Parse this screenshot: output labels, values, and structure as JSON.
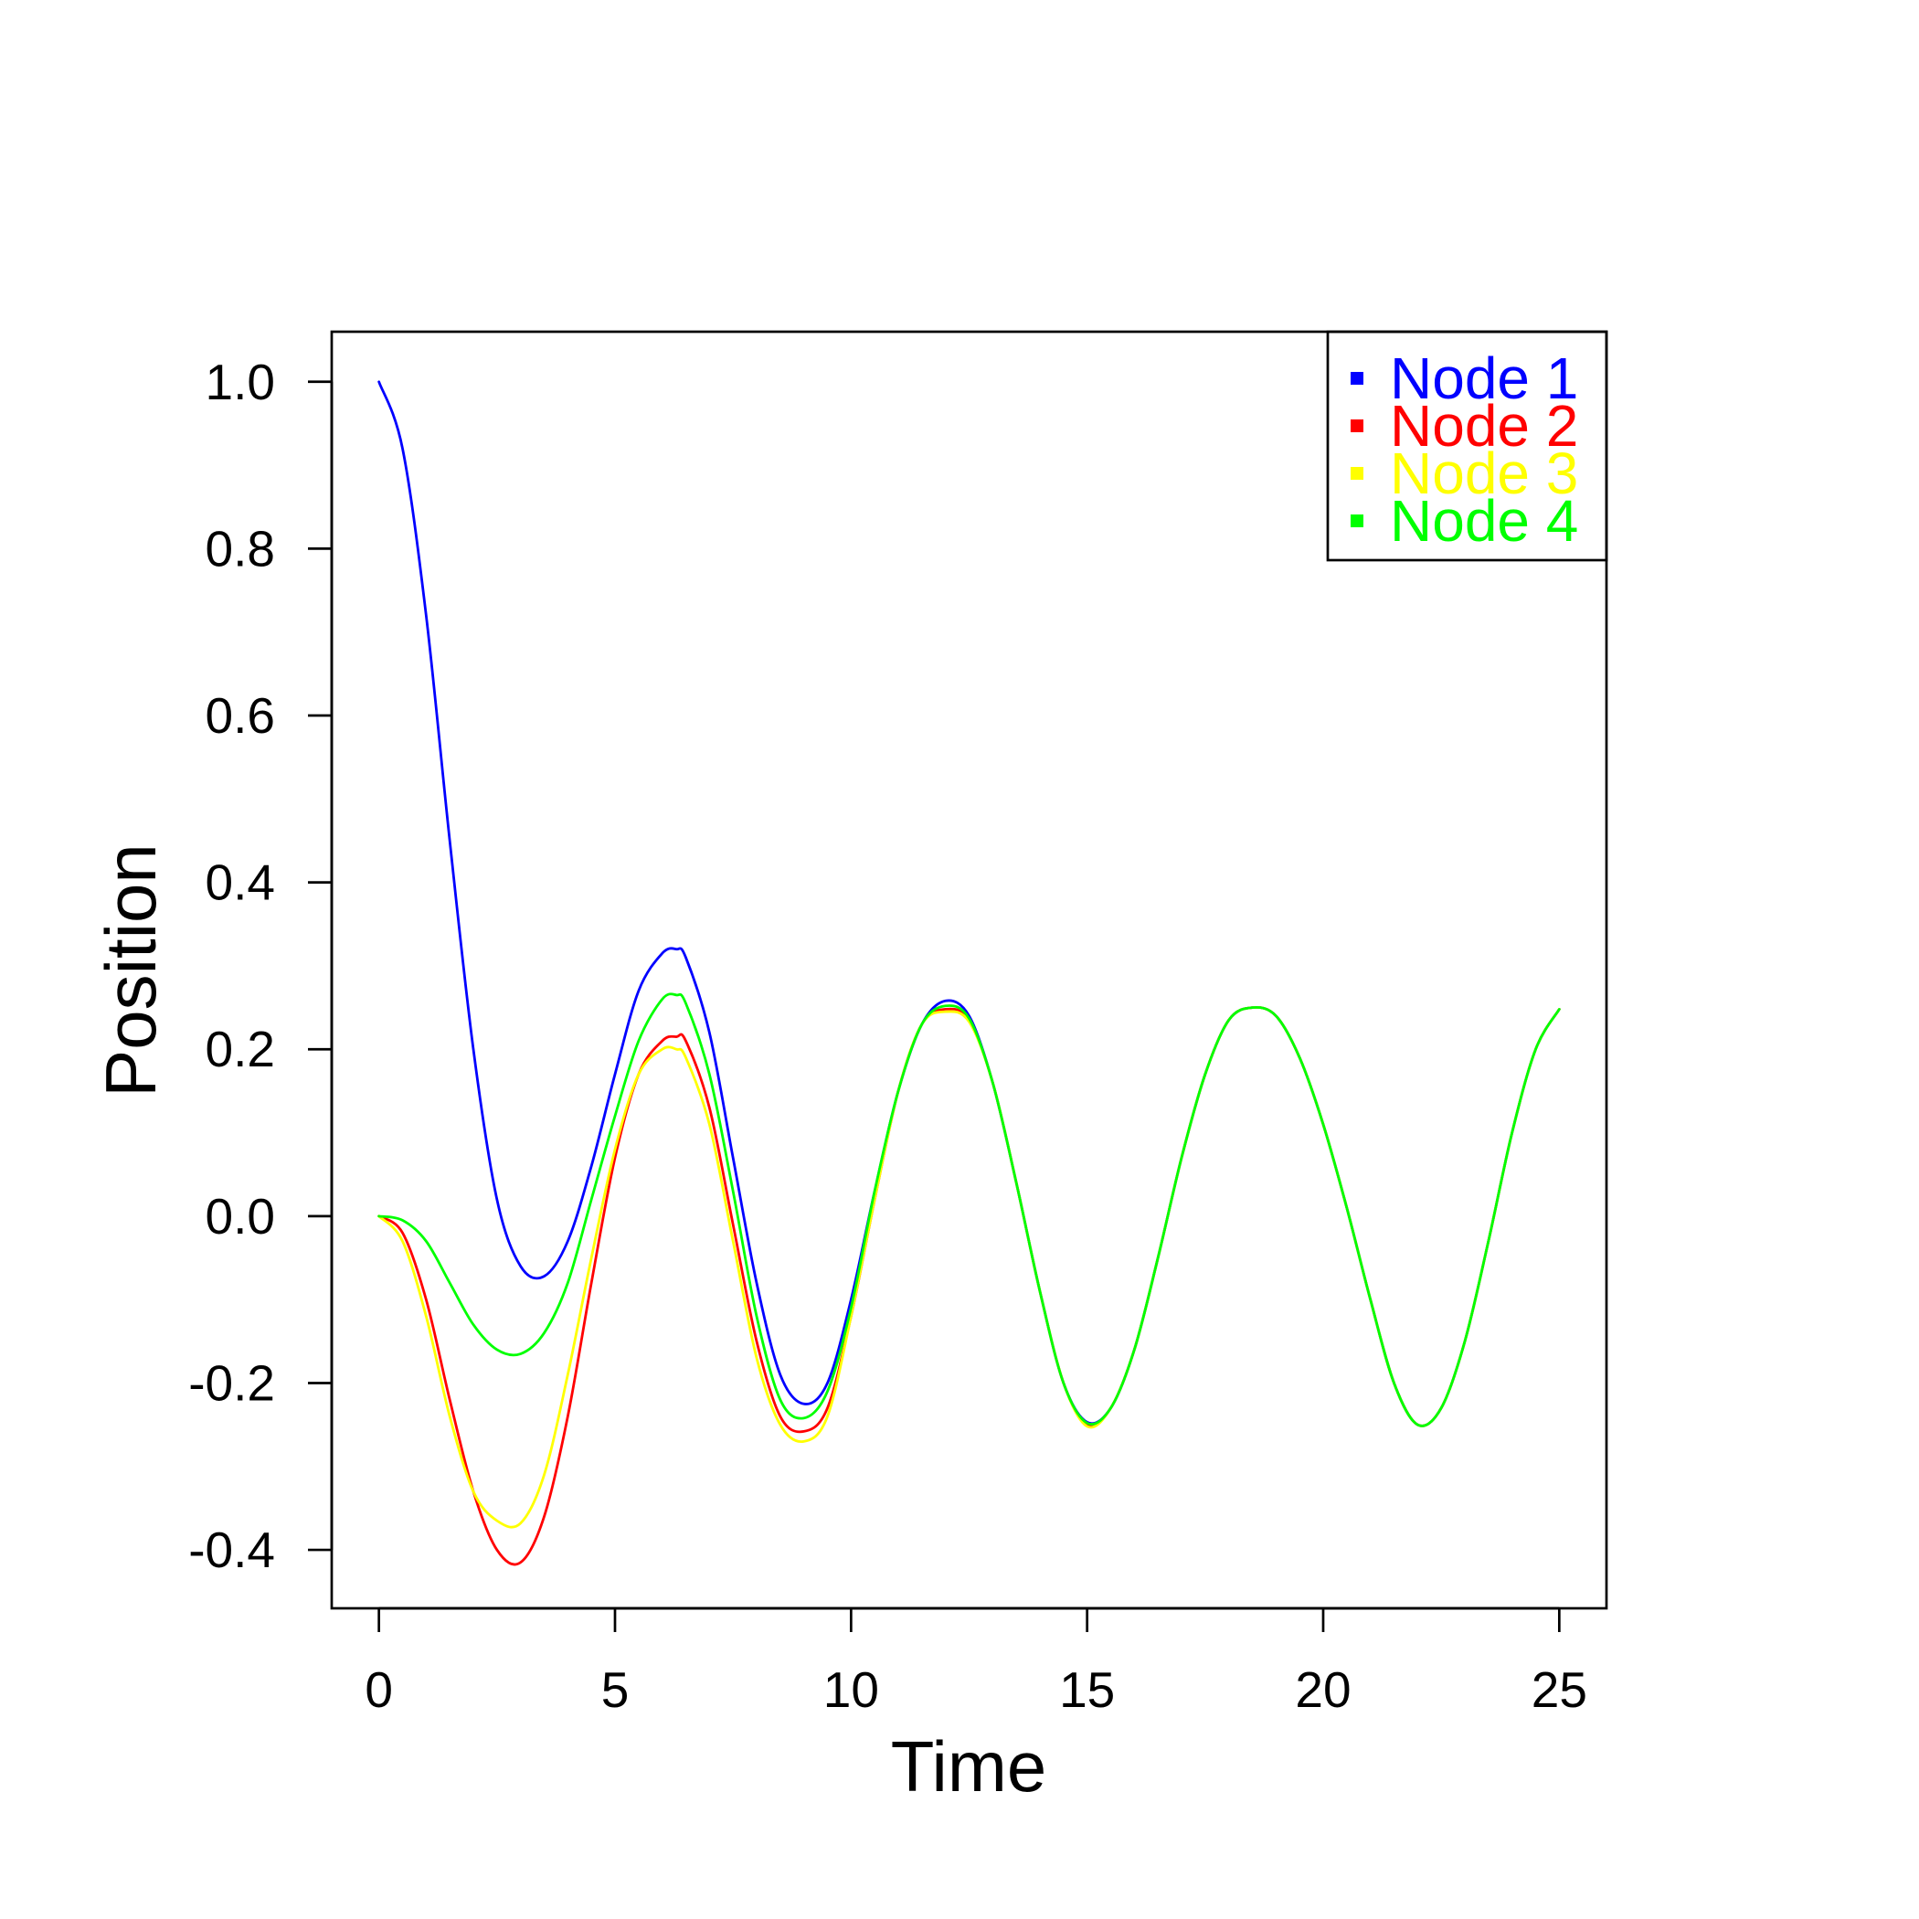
{
  "chart_data": {
    "type": "line",
    "title": "",
    "xlabel": "Time",
    "ylabel": "Position",
    "xlim": [
      -1,
      26
    ],
    "ylim": [
      -0.47,
      1.06
    ],
    "x_ticks": [
      0,
      5,
      10,
      15,
      20,
      25
    ],
    "x_tick_labels": [
      "0",
      "5",
      "10",
      "15",
      "20",
      "25"
    ],
    "y_ticks": [
      -0.4,
      -0.2,
      0.0,
      0.2,
      0.4,
      0.6,
      0.8,
      1.0
    ],
    "y_tick_labels": [
      "-0.4",
      "-0.2",
      "0.0",
      "0.2",
      "0.4",
      "0.6",
      "0.8",
      "1.0"
    ],
    "grid": false,
    "legend_position": "top-right",
    "series": [
      {
        "name": "Node 1",
        "color": "#0000ff",
        "x": [
          0,
          0.5,
          1,
          1.5,
          2,
          2.5,
          3,
          3.5,
          4,
          4.5,
          5,
          5.5,
          6,
          6.3,
          6.5,
          7,
          7.5,
          8,
          8.5,
          9,
          9.5,
          10,
          10.5,
          11,
          11.5,
          12,
          12.5,
          13,
          13.5,
          14,
          14.5,
          15,
          15.5,
          16,
          16.5,
          17,
          17.5,
          18,
          18.5,
          19,
          19.5,
          20,
          20.5,
          21,
          21.5,
          22,
          22.5,
          23,
          23.5,
          24,
          24.5,
          25
        ],
        "values": [
          1.0,
          0.92,
          0.72,
          0.45,
          0.2,
          0.02,
          -0.06,
          -0.072,
          -0.03,
          0.06,
          0.17,
          0.27,
          0.315,
          0.32,
          0.31,
          0.22,
          0.07,
          -0.08,
          -0.19,
          -0.225,
          -0.2,
          -0.1,
          0.03,
          0.15,
          0.23,
          0.258,
          0.24,
          0.16,
          0.04,
          -0.09,
          -0.2,
          -0.247,
          -0.23,
          -0.16,
          -0.05,
          0.07,
          0.17,
          0.235,
          0.25,
          0.24,
          0.19,
          0.11,
          0.01,
          -0.1,
          -0.2,
          -0.25,
          -0.23,
          -0.15,
          -0.03,
          0.1,
          0.2,
          0.248
        ]
      },
      {
        "name": "Node 2",
        "color": "#ff0000",
        "x": [
          0,
          0.5,
          1,
          1.5,
          2,
          2.5,
          3,
          3.5,
          4,
          4.5,
          5,
          5.5,
          6,
          6.3,
          6.5,
          7,
          7.5,
          8,
          8.5,
          9,
          9.5,
          10,
          10.5,
          11,
          11.5,
          12,
          12.5,
          13,
          13.5,
          14,
          14.5,
          15,
          15.5,
          16,
          16.5,
          17,
          17.5,
          18,
          18.5,
          19,
          19.5,
          20,
          20.5,
          21,
          21.5,
          22,
          22.5,
          23,
          23.5,
          24,
          24.5,
          25
        ],
        "values": [
          0.0,
          -0.02,
          -0.1,
          -0.22,
          -0.33,
          -0.4,
          -0.415,
          -0.36,
          -0.24,
          -0.08,
          0.07,
          0.17,
          0.21,
          0.215,
          0.21,
          0.13,
          -0.01,
          -0.15,
          -0.24,
          -0.258,
          -0.23,
          -0.12,
          0.02,
          0.15,
          0.23,
          0.248,
          0.235,
          0.16,
          0.04,
          -0.09,
          -0.2,
          -0.25,
          -0.23,
          -0.16,
          -0.05,
          0.07,
          0.17,
          0.235,
          0.25,
          0.24,
          0.19,
          0.11,
          0.01,
          -0.1,
          -0.2,
          -0.25,
          -0.23,
          -0.15,
          -0.03,
          0.1,
          0.2,
          0.248
        ]
      },
      {
        "name": "Node 3",
        "color": "#ffff00",
        "x": [
          0,
          0.5,
          1,
          1.5,
          2,
          2.5,
          3,
          3.5,
          4,
          4.5,
          5,
          5.5,
          6,
          6.3,
          6.5,
          7,
          7.5,
          8,
          8.5,
          9,
          9.5,
          10,
          10.5,
          11,
          11.5,
          12,
          12.5,
          13,
          13.5,
          14,
          14.5,
          15,
          15.5,
          16,
          16.5,
          17,
          17.5,
          18,
          18.5,
          19,
          19.5,
          20,
          20.5,
          21,
          21.5,
          22,
          22.5,
          23,
          23.5,
          24,
          24.5,
          25
        ],
        "values": [
          0.0,
          -0.03,
          -0.12,
          -0.24,
          -0.33,
          -0.365,
          -0.368,
          -0.31,
          -0.19,
          -0.05,
          0.08,
          0.17,
          0.2,
          0.2,
          0.19,
          0.11,
          -0.03,
          -0.17,
          -0.25,
          -0.27,
          -0.24,
          -0.12,
          0.02,
          0.15,
          0.23,
          0.245,
          0.233,
          0.16,
          0.04,
          -0.09,
          -0.2,
          -0.252,
          -0.23,
          -0.16,
          -0.05,
          0.07,
          0.17,
          0.235,
          0.25,
          0.24,
          0.19,
          0.11,
          0.01,
          -0.1,
          -0.2,
          -0.25,
          -0.23,
          -0.15,
          -0.03,
          0.1,
          0.2,
          0.248
        ]
      },
      {
        "name": "Node 4",
        "color": "#00ff00",
        "x": [
          0,
          0.5,
          1,
          1.5,
          2,
          2.5,
          3,
          3.5,
          4,
          4.5,
          5,
          5.5,
          6,
          6.3,
          6.5,
          7,
          7.5,
          8,
          8.5,
          9,
          9.5,
          10,
          10.5,
          11,
          11.5,
          12,
          12.5,
          13,
          13.5,
          14,
          14.5,
          15,
          15.5,
          16,
          16.5,
          17,
          17.5,
          18,
          18.5,
          19,
          19.5,
          20,
          20.5,
          21,
          21.5,
          22,
          22.5,
          23,
          23.5,
          24,
          24.5,
          25
        ],
        "values": [
          0.0,
          -0.005,
          -0.03,
          -0.08,
          -0.13,
          -0.16,
          -0.165,
          -0.14,
          -0.08,
          0.02,
          0.12,
          0.21,
          0.26,
          0.265,
          0.255,
          0.17,
          0.03,
          -0.12,
          -0.22,
          -0.242,
          -0.21,
          -0.11,
          0.03,
          0.15,
          0.23,
          0.252,
          0.237,
          0.16,
          0.04,
          -0.09,
          -0.2,
          -0.248,
          -0.23,
          -0.16,
          -0.05,
          0.07,
          0.17,
          0.235,
          0.25,
          0.24,
          0.19,
          0.11,
          0.01,
          -0.1,
          -0.2,
          -0.25,
          -0.23,
          -0.15,
          -0.03,
          0.1,
          0.2,
          0.248
        ]
      }
    ]
  }
}
